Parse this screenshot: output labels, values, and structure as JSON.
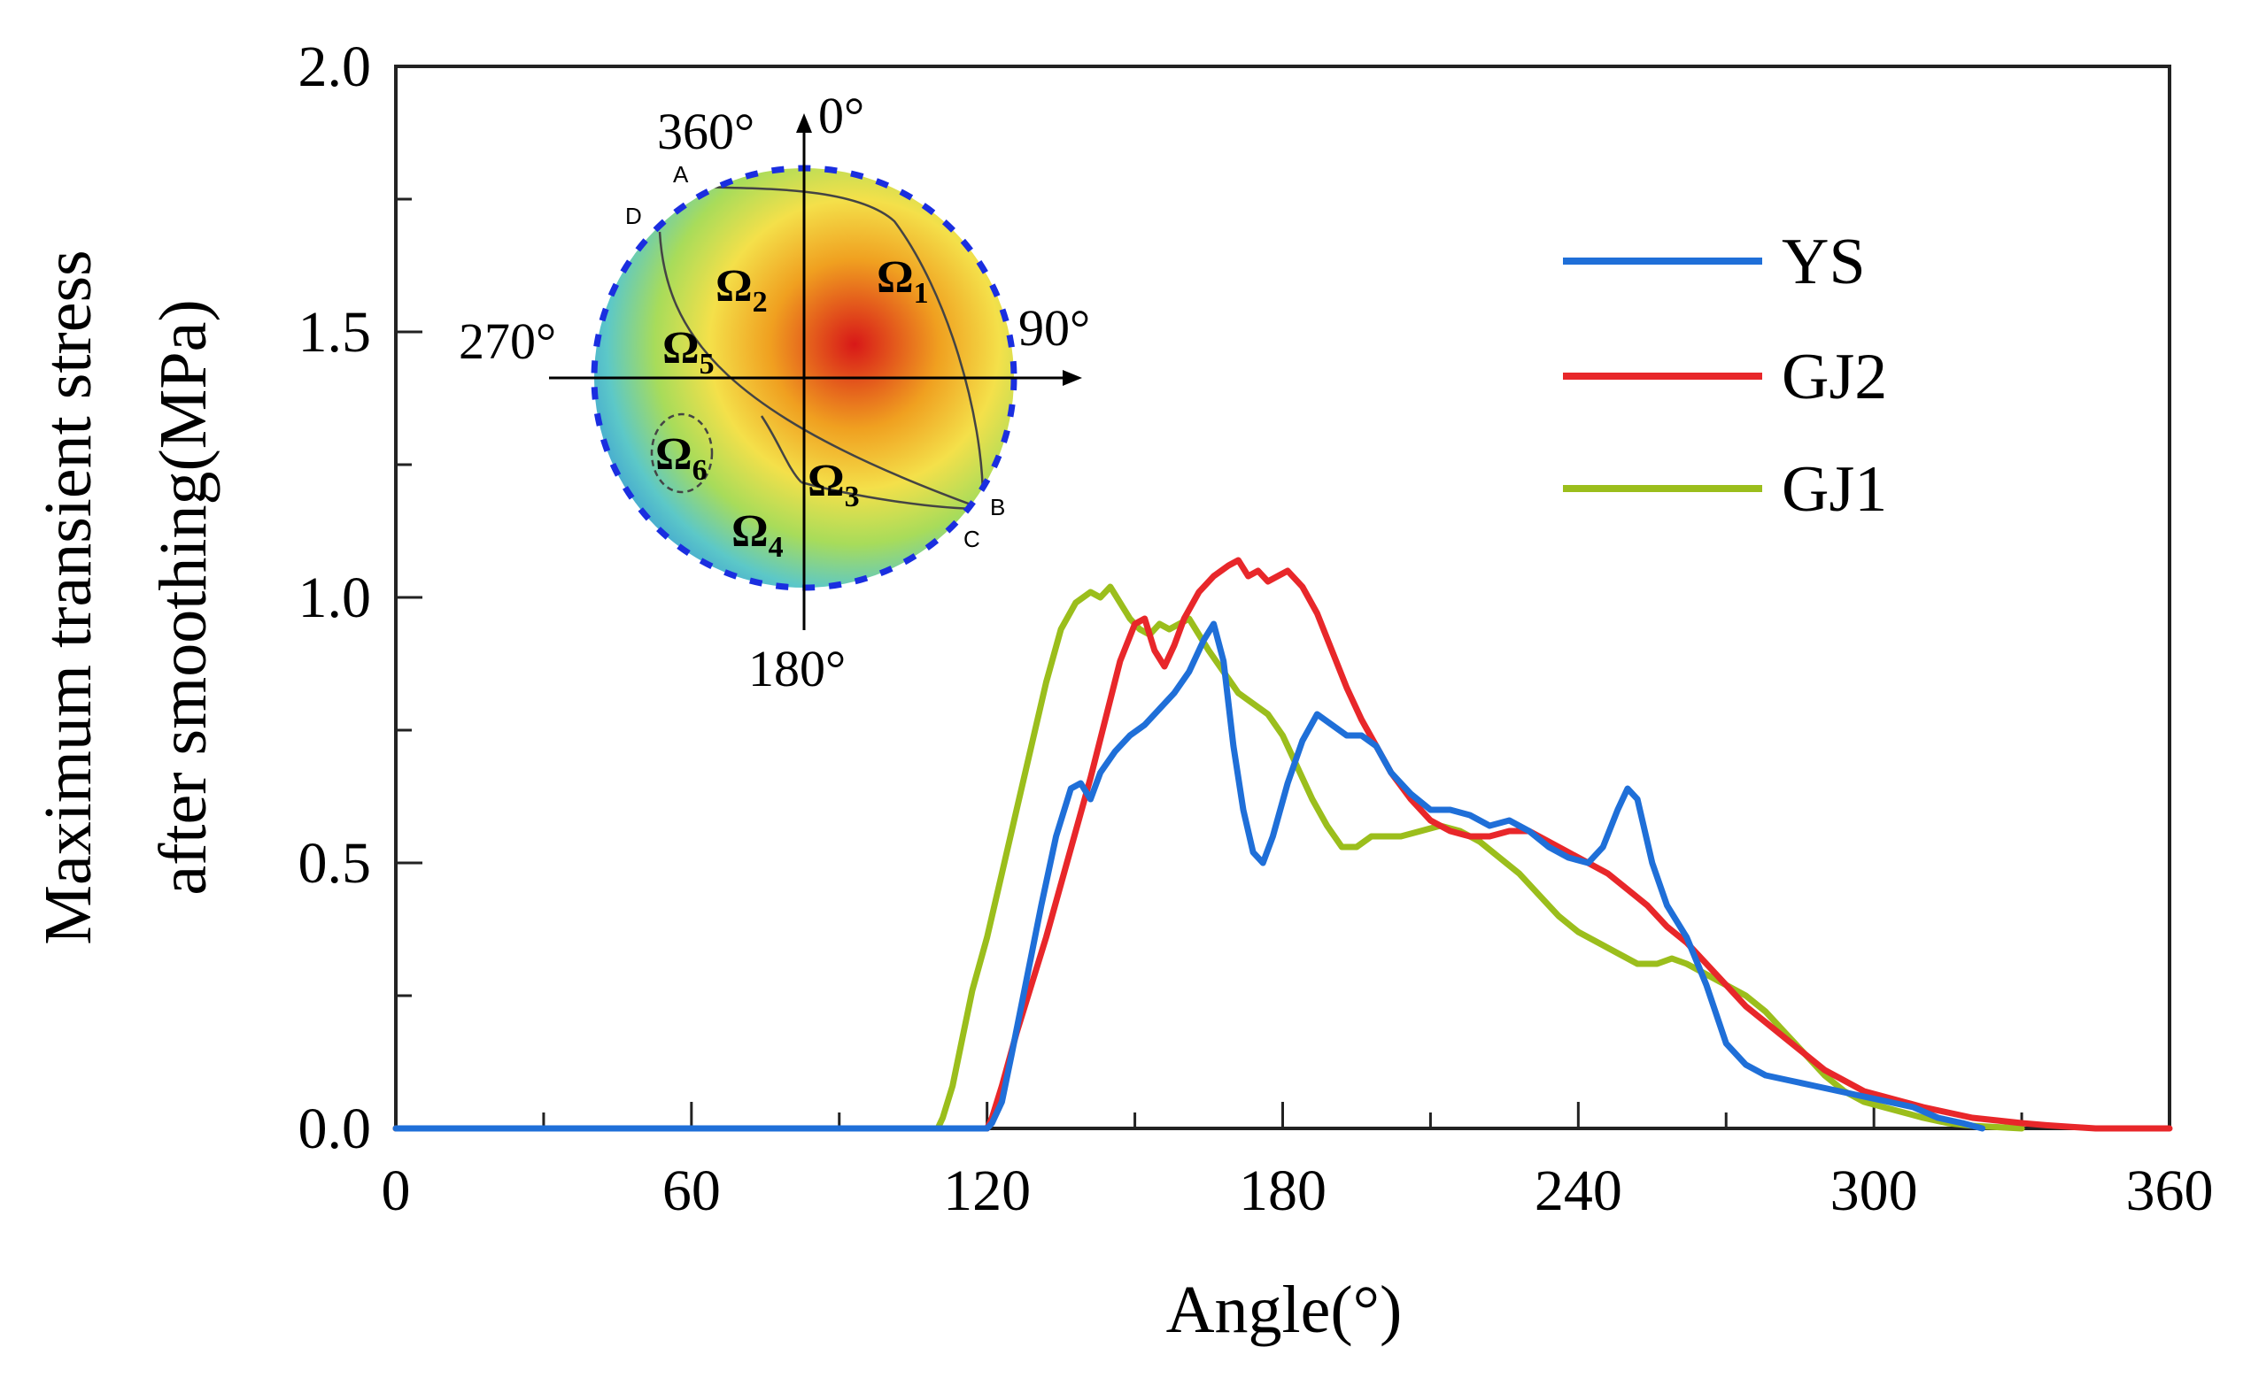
{
  "chart_data": {
    "type": "line",
    "xlabel": "Angle(°)",
    "ylabel_line1": "Maximum transient stress",
    "ylabel_line2": "after smoothing(MPa)",
    "xlim": [
      0,
      360
    ],
    "ylim": [
      0,
      2.0
    ],
    "xticks": [
      0,
      60,
      120,
      180,
      240,
      300,
      360
    ],
    "xtick_labels": [
      "0",
      "60",
      "120",
      "180",
      "240",
      "300",
      "360"
    ],
    "yticks": [
      0.0,
      0.5,
      1.0,
      1.5,
      2.0
    ],
    "ytick_labels": [
      "0.0",
      "0.5",
      "1.0",
      "1.5",
      "2.0"
    ],
    "legend_position": "top-right",
    "series": [
      {
        "name": "YS",
        "color": "#1f6fd8",
        "points": [
          [
            0,
            0
          ],
          [
            120,
            0
          ],
          [
            121,
            0.01
          ],
          [
            123,
            0.05
          ],
          [
            125,
            0.14
          ],
          [
            128,
            0.28
          ],
          [
            131,
            0.42
          ],
          [
            134,
            0.55
          ],
          [
            137,
            0.64
          ],
          [
            139,
            0.65
          ],
          [
            141,
            0.62
          ],
          [
            143,
            0.67
          ],
          [
            146,
            0.71
          ],
          [
            149,
            0.74
          ],
          [
            152,
            0.76
          ],
          [
            155,
            0.79
          ],
          [
            158,
            0.82
          ],
          [
            161,
            0.86
          ],
          [
            164,
            0.92
          ],
          [
            166,
            0.95
          ],
          [
            168,
            0.88
          ],
          [
            170,
            0.72
          ],
          [
            172,
            0.6
          ],
          [
            174,
            0.52
          ],
          [
            176,
            0.5
          ],
          [
            178,
            0.55
          ],
          [
            181,
            0.65
          ],
          [
            184,
            0.73
          ],
          [
            187,
            0.78
          ],
          [
            190,
            0.76
          ],
          [
            193,
            0.74
          ],
          [
            196,
            0.74
          ],
          [
            199,
            0.72
          ],
          [
            202,
            0.67
          ],
          [
            206,
            0.63
          ],
          [
            210,
            0.6
          ],
          [
            214,
            0.6
          ],
          [
            218,
            0.59
          ],
          [
            222,
            0.57
          ],
          [
            226,
            0.58
          ],
          [
            230,
            0.56
          ],
          [
            234,
            0.53
          ],
          [
            238,
            0.51
          ],
          [
            242,
            0.5
          ],
          [
            245,
            0.53
          ],
          [
            248,
            0.6
          ],
          [
            250,
            0.64
          ],
          [
            252,
            0.62
          ],
          [
            255,
            0.5
          ],
          [
            258,
            0.42
          ],
          [
            262,
            0.36
          ],
          [
            266,
            0.27
          ],
          [
            270,
            0.16
          ],
          [
            274,
            0.12
          ],
          [
            278,
            0.1
          ],
          [
            283,
            0.09
          ],
          [
            288,
            0.08
          ],
          [
            293,
            0.07
          ],
          [
            298,
            0.06
          ],
          [
            303,
            0.05
          ],
          [
            308,
            0.04
          ],
          [
            313,
            0.02
          ],
          [
            318,
            0.01
          ],
          [
            322,
            0
          ]
        ]
      },
      {
        "name": "GJ2",
        "color": "#e8272a",
        "points": [
          [
            0,
            0
          ],
          [
            120,
            0
          ],
          [
            121,
            0.02
          ],
          [
            123,
            0.08
          ],
          [
            126,
            0.18
          ],
          [
            129,
            0.27
          ],
          [
            132,
            0.36
          ],
          [
            135,
            0.46
          ],
          [
            138,
            0.56
          ],
          [
            141,
            0.66
          ],
          [
            144,
            0.77
          ],
          [
            147,
            0.88
          ],
          [
            150,
            0.95
          ],
          [
            152,
            0.96
          ],
          [
            154,
            0.9
          ],
          [
            156,
            0.87
          ],
          [
            158,
            0.91
          ],
          [
            160,
            0.96
          ],
          [
            163,
            1.01
          ],
          [
            166,
            1.04
          ],
          [
            169,
            1.06
          ],
          [
            171,
            1.07
          ],
          [
            173,
            1.04
          ],
          [
            175,
            1.05
          ],
          [
            177,
            1.03
          ],
          [
            179,
            1.04
          ],
          [
            181,
            1.05
          ],
          [
            184,
            1.02
          ],
          [
            187,
            0.97
          ],
          [
            190,
            0.9
          ],
          [
            193,
            0.83
          ],
          [
            196,
            0.77
          ],
          [
            199,
            0.72
          ],
          [
            202,
            0.67
          ],
          [
            206,
            0.62
          ],
          [
            210,
            0.58
          ],
          [
            214,
            0.56
          ],
          [
            218,
            0.55
          ],
          [
            222,
            0.55
          ],
          [
            226,
            0.56
          ],
          [
            230,
            0.56
          ],
          [
            234,
            0.54
          ],
          [
            238,
            0.52
          ],
          [
            242,
            0.5
          ],
          [
            246,
            0.48
          ],
          [
            250,
            0.45
          ],
          [
            254,
            0.42
          ],
          [
            258,
            0.38
          ],
          [
            262,
            0.35
          ],
          [
            266,
            0.31
          ],
          [
            270,
            0.27
          ],
          [
            274,
            0.23
          ],
          [
            278,
            0.2
          ],
          [
            282,
            0.17
          ],
          [
            286,
            0.14
          ],
          [
            290,
            0.11
          ],
          [
            294,
            0.09
          ],
          [
            298,
            0.07
          ],
          [
            302,
            0.06
          ],
          [
            306,
            0.05
          ],
          [
            310,
            0.04
          ],
          [
            315,
            0.03
          ],
          [
            320,
            0.02
          ],
          [
            325,
            0.015
          ],
          [
            330,
            0.01
          ],
          [
            335,
            0.006
          ],
          [
            340,
            0.003
          ],
          [
            345,
            0
          ],
          [
            360,
            0
          ]
        ]
      },
      {
        "name": "GJ1",
        "color": "#9bbe1c",
        "points": [
          [
            0,
            0
          ],
          [
            110,
            0
          ],
          [
            111,
            0.02
          ],
          [
            113,
            0.08
          ],
          [
            115,
            0.17
          ],
          [
            117,
            0.26
          ],
          [
            120,
            0.36
          ],
          [
            123,
            0.48
          ],
          [
            126,
            0.6
          ],
          [
            129,
            0.72
          ],
          [
            132,
            0.84
          ],
          [
            135,
            0.94
          ],
          [
            138,
            0.99
          ],
          [
            141,
            1.01
          ],
          [
            143,
            1.0
          ],
          [
            145,
            1.02
          ],
          [
            147,
            0.99
          ],
          [
            149,
            0.96
          ],
          [
            151,
            0.94
          ],
          [
            153,
            0.93
          ],
          [
            155,
            0.95
          ],
          [
            157,
            0.94
          ],
          [
            159,
            0.95
          ],
          [
            161,
            0.96
          ],
          [
            163,
            0.93
          ],
          [
            165,
            0.9
          ],
          [
            168,
            0.86
          ],
          [
            171,
            0.82
          ],
          [
            174,
            0.8
          ],
          [
            177,
            0.78
          ],
          [
            180,
            0.74
          ],
          [
            183,
            0.68
          ],
          [
            186,
            0.62
          ],
          [
            189,
            0.57
          ],
          [
            192,
            0.53
          ],
          [
            195,
            0.53
          ],
          [
            198,
            0.55
          ],
          [
            201,
            0.55
          ],
          [
            204,
            0.55
          ],
          [
            208,
            0.56
          ],
          [
            212,
            0.57
          ],
          [
            216,
            0.56
          ],
          [
            220,
            0.54
          ],
          [
            224,
            0.51
          ],
          [
            228,
            0.48
          ],
          [
            232,
            0.44
          ],
          [
            236,
            0.4
          ],
          [
            240,
            0.37
          ],
          [
            244,
            0.35
          ],
          [
            248,
            0.33
          ],
          [
            252,
            0.31
          ],
          [
            256,
            0.31
          ],
          [
            259,
            0.32
          ],
          [
            262,
            0.31
          ],
          [
            266,
            0.29
          ],
          [
            270,
            0.27
          ],
          [
            274,
            0.25
          ],
          [
            278,
            0.22
          ],
          [
            282,
            0.18
          ],
          [
            286,
            0.14
          ],
          [
            290,
            0.1
          ],
          [
            294,
            0.07
          ],
          [
            298,
            0.05
          ],
          [
            302,
            0.04
          ],
          [
            306,
            0.03
          ],
          [
            310,
            0.02
          ],
          [
            315,
            0.01
          ],
          [
            320,
            0.005
          ],
          [
            330,
            0
          ]
        ]
      }
    ],
    "inset": {
      "angle_labels": {
        "top_left": "360°",
        "top_right": "0°",
        "left": "270°",
        "right": "90°",
        "bottom": "180°"
      },
      "point_labels": [
        "A",
        "B",
        "C",
        "D"
      ],
      "regions": [
        {
          "symbol": "Ω",
          "sub": "1"
        },
        {
          "symbol": "Ω",
          "sub": "2"
        },
        {
          "symbol": "Ω",
          "sub": "3"
        },
        {
          "symbol": "Ω",
          "sub": "4"
        },
        {
          "symbol": "Ω",
          "sub": "5"
        },
        {
          "symbol": "Ω",
          "sub": "6"
        }
      ],
      "colors": {
        "border": "#1a2ee0",
        "outer": "#2e8ad8",
        "low": "#5cc8c8",
        "mid": "#a8dc5a",
        "high": "#f0a020",
        "peak": "#d81818"
      }
    }
  }
}
